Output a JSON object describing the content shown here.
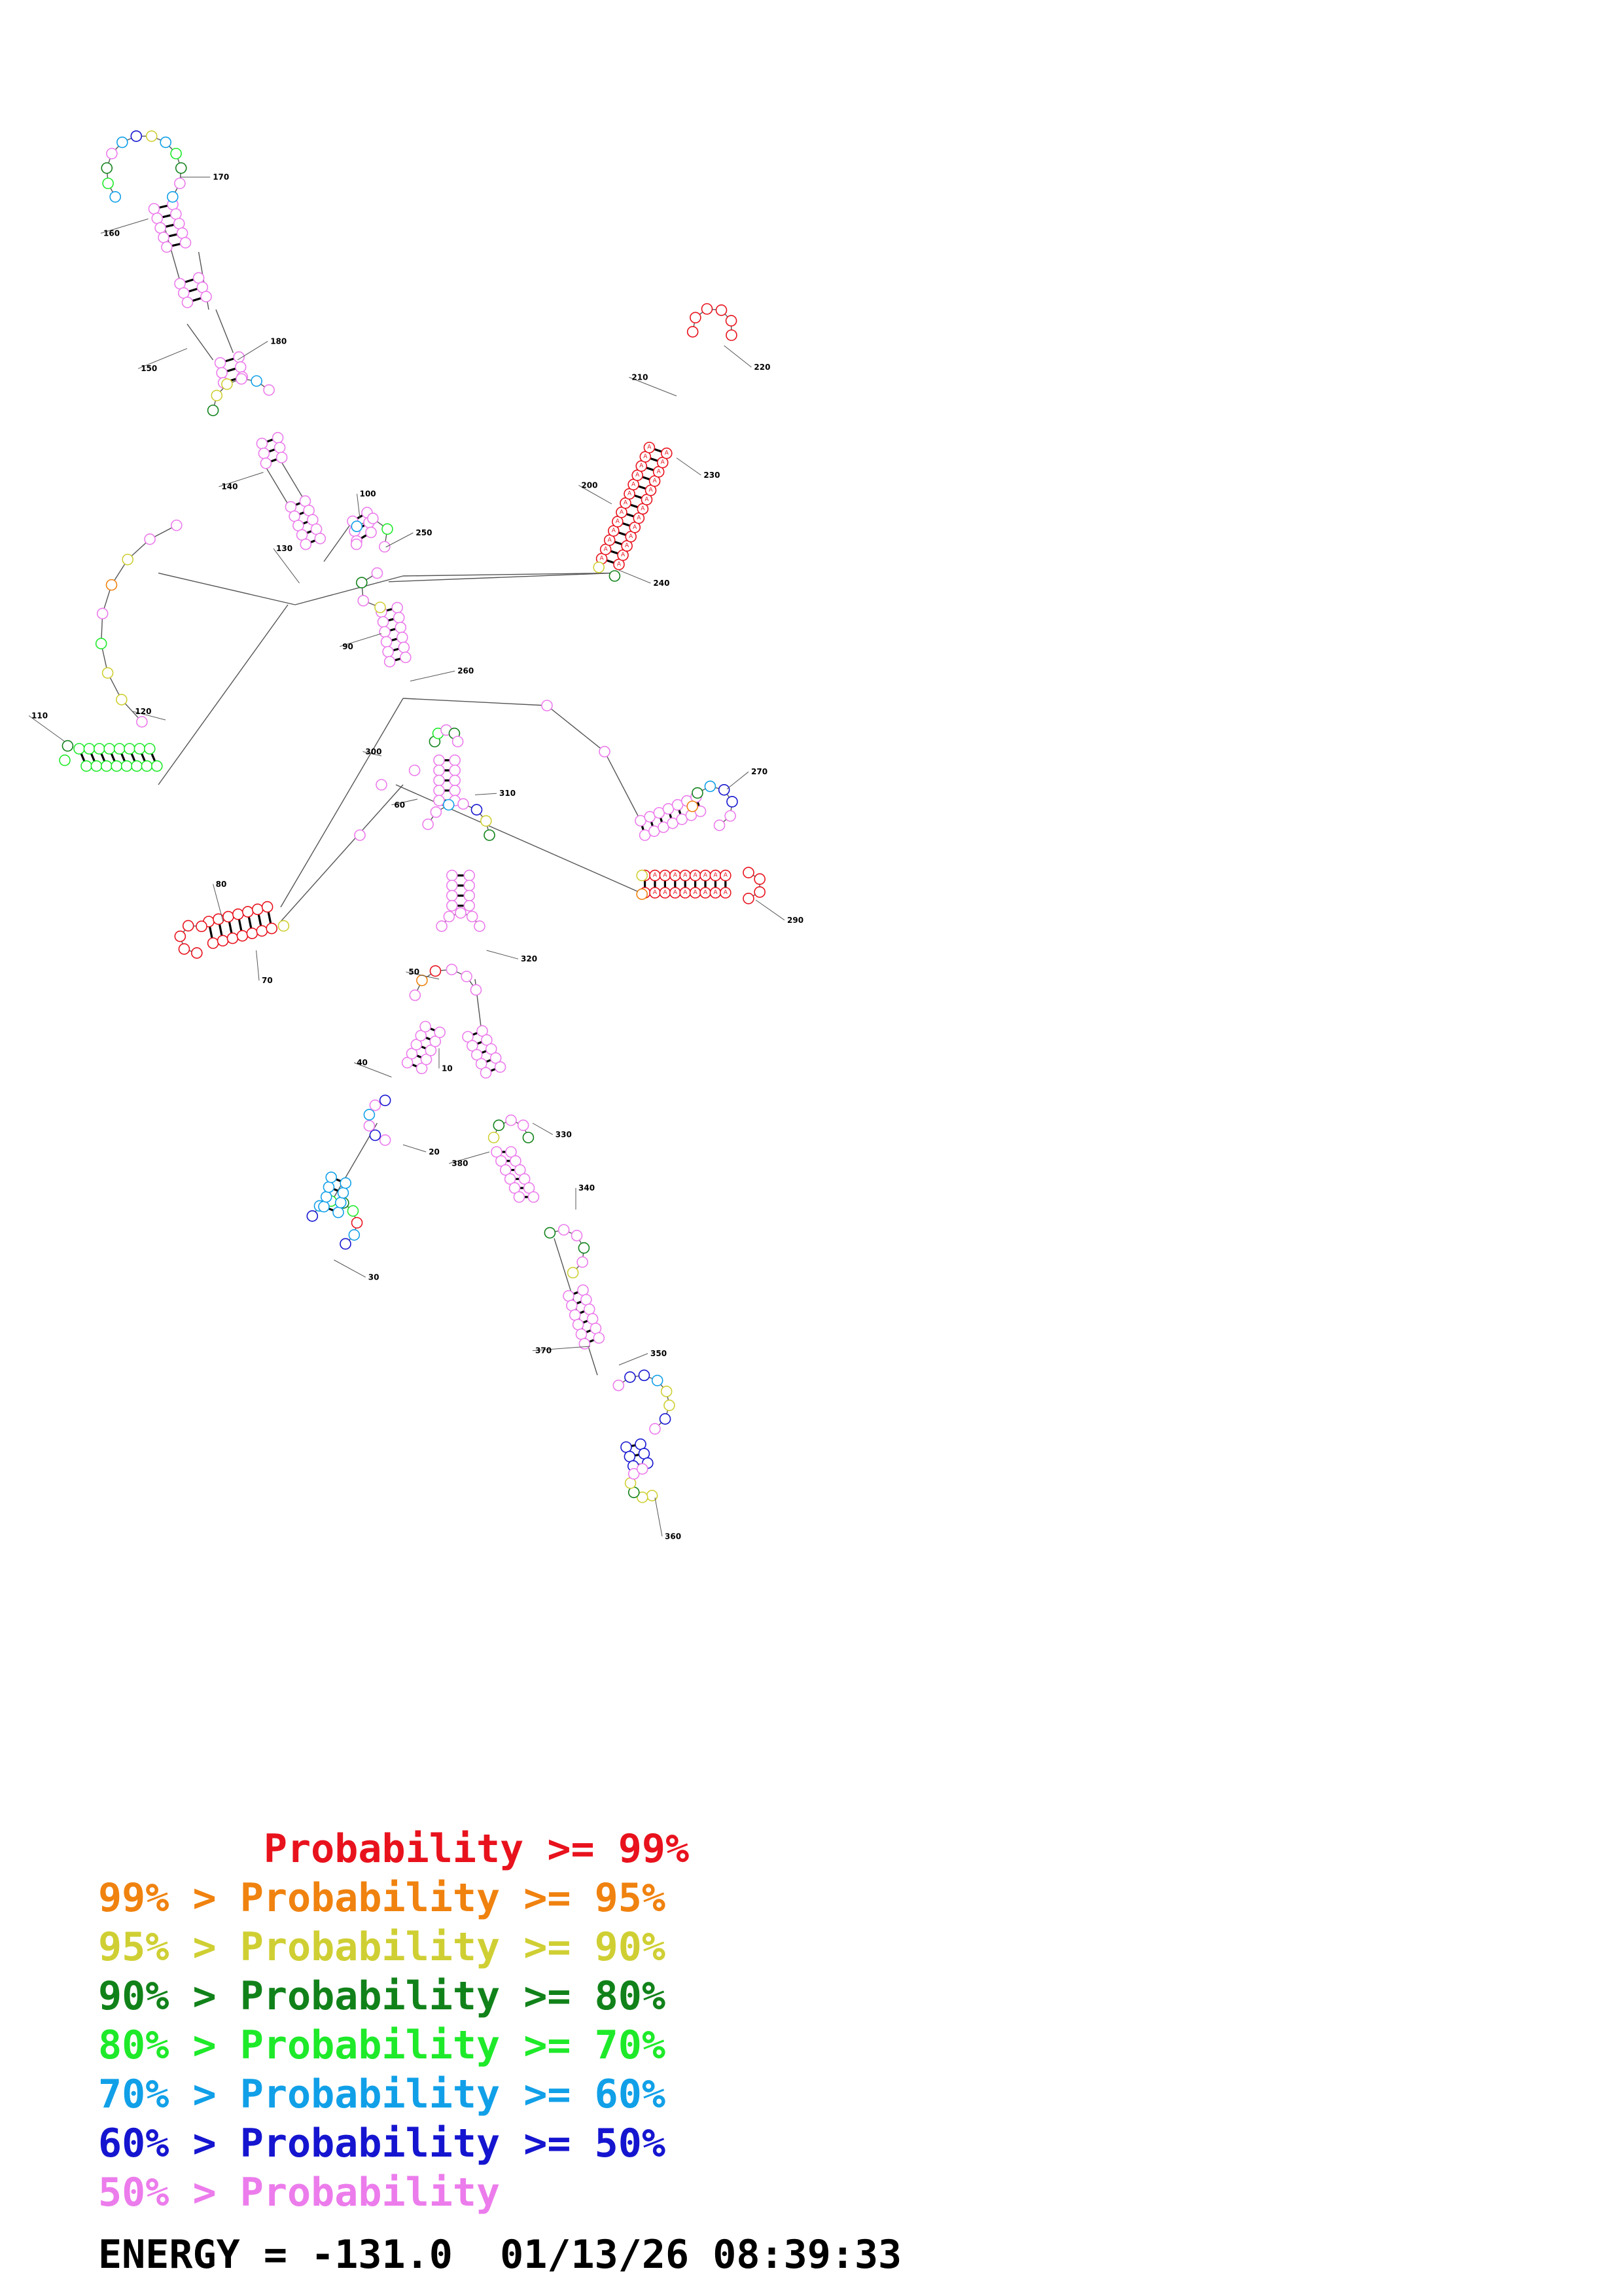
{
  "structure": {
    "position_labels": [
      "10",
      "20",
      "30",
      "40",
      "50",
      "60",
      "70",
      "80",
      "90",
      "100",
      "110",
      "120",
      "130",
      "140",
      "150",
      "160",
      "170",
      "180",
      "200",
      "210",
      "220",
      "230",
      "240",
      "250",
      "260",
      "270",
      "290",
      "300",
      "310",
      "320",
      "330",
      "340",
      "350",
      "360",
      "370",
      "380"
    ]
  },
  "legend": {
    "items": [
      {
        "text": "       Probability >= 99%",
        "color": "#e8121d"
      },
      {
        "text": "99% > Probability >= 95%",
        "color": "#f0820f"
      },
      {
        "text": "95% > Probability >= 90%",
        "color": "#cfcf34"
      },
      {
        "text": "90% > Probability >= 80%",
        "color": "#11821a"
      },
      {
        "text": "80% > Probability >= 70%",
        "color": "#1eea2a"
      },
      {
        "text": "70% > Probability >= 60%",
        "color": "#11a0e8"
      },
      {
        "text": "60% > Probability >= 50%",
        "color": "#1515d0"
      },
      {
        "text": "50% > Probability",
        "color": "#ec7cec"
      }
    ]
  },
  "footer": {
    "energy": "ENERGY = -131.0  01/13/26 08:39:33"
  }
}
